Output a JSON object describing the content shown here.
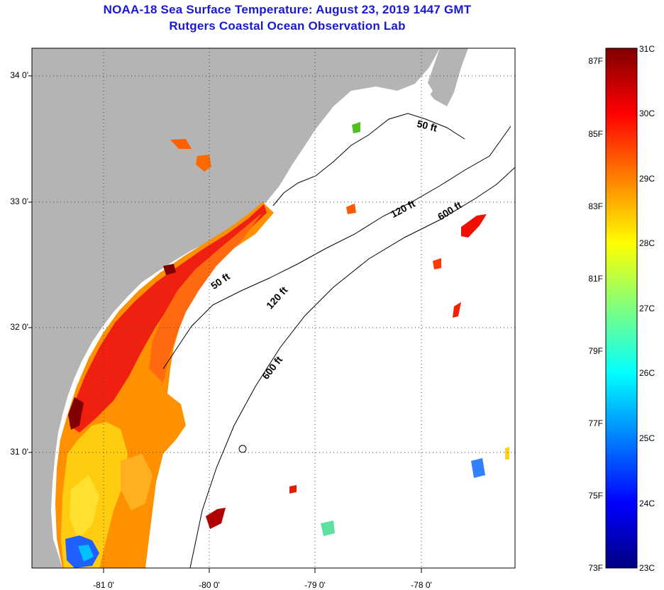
{
  "title": {
    "line1": "NOAA-18 Sea Surface Temperature:  August 23, 2019 1447 GMT",
    "line2": "Rutgers Coastal Ocean Observation Lab"
  },
  "map": {
    "latitude_labels": [
      "34 0'",
      "33 0'",
      "32 0'",
      "31 0'"
    ],
    "longitude_labels": [
      "-81 0'",
      "-80 0'",
      "-79 0'",
      "-78 0'"
    ],
    "isobath_labels": [
      "50 ft",
      "120 ft",
      "600 ft",
      "50 ft",
      "120 ft",
      "600 ft"
    ],
    "land_color": "#b4b4b4",
    "coastline_color": "#000000"
  },
  "colorbar": {
    "fahrenheit_labels": [
      "87F",
      "85F",
      "83F",
      "81F",
      "79F",
      "77F",
      "75F",
      "73F"
    ],
    "celsius_labels": [
      "31C",
      "30C",
      "29C",
      "28C",
      "27C",
      "26C",
      "25C",
      "24C",
      "23C"
    ],
    "range_celsius": [
      23,
      31
    ],
    "colors": [
      "#000080",
      "#0000ff",
      "#0080ff",
      "#00ffff",
      "#80ff80",
      "#ffff00",
      "#ff8000",
      "#ff0000",
      "#800000"
    ]
  }
}
